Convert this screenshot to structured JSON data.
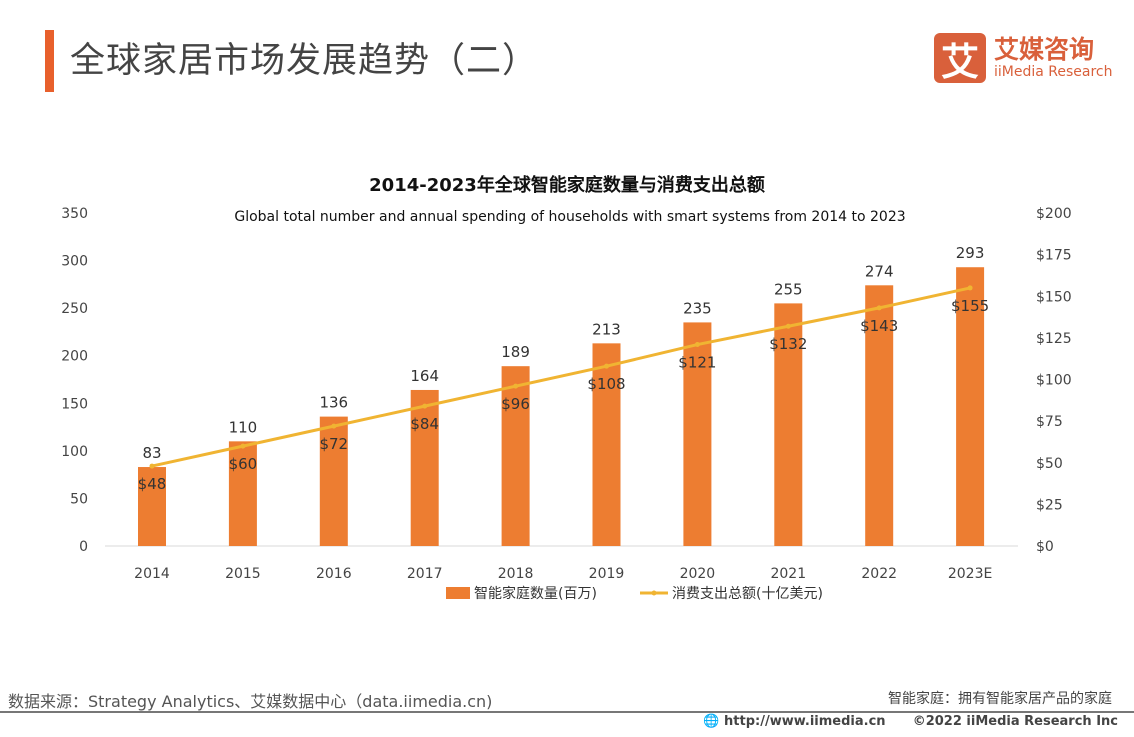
{
  "header": {
    "title": "全球家居市场发展趋势（二）"
  },
  "logo": {
    "mark": "艾",
    "cn": "艾媒咨询",
    "en": "iiMedia Research"
  },
  "chart_data": {
    "type": "bar+line",
    "title": "2014-2023年全球智能家庭数量与消费支出总额",
    "subtitle": "Global total number and  annual spending of households with smart systems from 2014 to 2023",
    "categories": [
      "2014",
      "2015",
      "2016",
      "2017",
      "2018",
      "2019",
      "2020",
      "2021",
      "2022",
      "2023E"
    ],
    "series": [
      {
        "name": "智能家庭数量(百万)",
        "type": "bar",
        "axis": "left",
        "color": "#ed7d31",
        "values": [
          83,
          110,
          136,
          164,
          189,
          213,
          235,
          255,
          274,
          293
        ],
        "labels": [
          "83",
          "110",
          "136",
          "164",
          "189",
          "213",
          "235",
          "255",
          "274",
          "293"
        ]
      },
      {
        "name": "消费支出总额(十亿美元)",
        "type": "line",
        "axis": "right",
        "color": "#f0b432",
        "values": [
          48,
          60,
          72,
          84,
          96,
          108,
          121,
          132,
          143,
          155
        ],
        "labels": [
          "$48",
          "$60",
          "$72",
          "$84",
          "$96",
          "$108",
          "$121",
          "$132",
          "$143",
          "$155"
        ]
      }
    ],
    "ylim_left": [
      0,
      350
    ],
    "yticks_left": [
      "0",
      "50",
      "100",
      "150",
      "200",
      "250",
      "300",
      "350"
    ],
    "ylim_right": [
      0,
      200
    ],
    "yticks_right": [
      "$0",
      "$25",
      "$50",
      "$75",
      "$100",
      "$125",
      "$150",
      "$175",
      "$200"
    ],
    "grid": false,
    "legend": "bottom"
  },
  "footer": {
    "source": "数据来源：Strategy Analytics、艾媒数据中心（data.iimedia.cn)",
    "note": "智能家庭：拥有智能家居产品的家庭",
    "url": "http://www.iimedia.cn",
    "copyright": "©2022  iiMedia Research  Inc"
  }
}
